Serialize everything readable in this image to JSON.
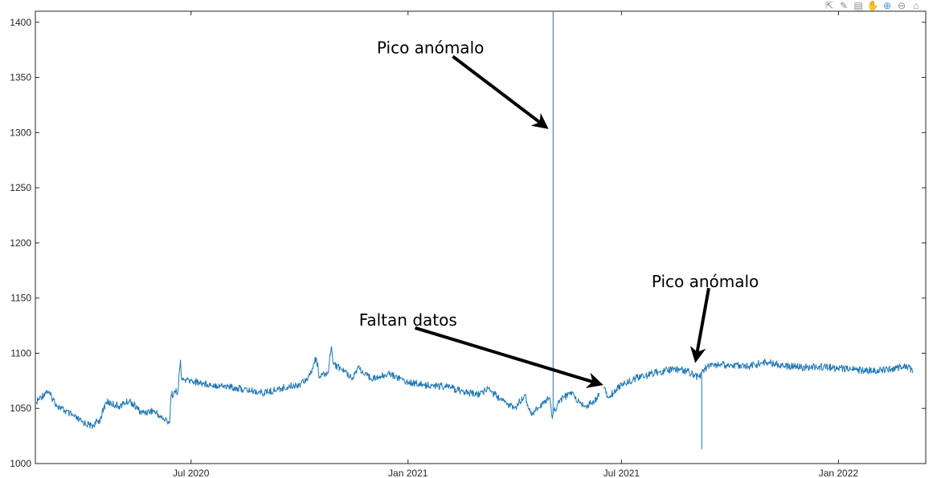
{
  "toolbar": {
    "icons": [
      "export-icon",
      "brush-icon",
      "datatip-icon",
      "pan-icon",
      "zoom-in-icon",
      "zoom-out-icon",
      "home-icon"
    ]
  },
  "chart_data": {
    "type": "line",
    "title": "",
    "xlabel": "",
    "ylabel": "",
    "xlim": [
      "2020-02-20",
      "2022-03-16"
    ],
    "ylim": [
      1000,
      1410
    ],
    "grid": false,
    "line_color": "#1f77b4",
    "yticks": [
      1000,
      1050,
      1100,
      1150,
      1200,
      1250,
      1300,
      1350,
      1400
    ],
    "xticks": [
      {
        "date": "2020-07-01",
        "label": "Jul 2020"
      },
      {
        "date": "2021-01-01",
        "label": "Jan 2021"
      },
      {
        "date": "2021-07-01",
        "label": "Jul 2021"
      },
      {
        "date": "2022-01-01",
        "label": "Jan 2022"
      }
    ],
    "series": [
      {
        "points": [
          [
            "2020-02-21",
            1056
          ],
          [
            "2020-03-01",
            1066
          ],
          [
            "2020-03-10",
            1052
          ],
          [
            "2020-03-20",
            1045
          ],
          [
            "2020-03-30",
            1038
          ],
          [
            "2020-04-08",
            1034
          ],
          [
            "2020-04-15",
            1040
          ],
          [
            "2020-04-20",
            1056
          ],
          [
            "2020-05-01",
            1052
          ],
          [
            "2020-05-10",
            1057
          ],
          [
            "2020-05-20",
            1046
          ],
          [
            "2020-05-30",
            1048
          ],
          [
            "2020-06-08",
            1040
          ],
          [
            "2020-06-13",
            1038
          ],
          [
            "2020-06-14",
            1062
          ],
          [
            "2020-06-20",
            1066
          ],
          [
            "2020-06-22",
            1094
          ],
          [
            "2020-06-23",
            1076
          ],
          [
            "2020-07-01",
            1075
          ],
          [
            "2020-07-15",
            1072
          ],
          [
            "2020-08-01",
            1070
          ],
          [
            "2020-08-15",
            1067
          ],
          [
            "2020-09-01",
            1064
          ],
          [
            "2020-09-15",
            1068
          ],
          [
            "2020-10-01",
            1072
          ],
          [
            "2020-10-10",
            1080
          ],
          [
            "2020-10-15",
            1096
          ],
          [
            "2020-10-18",
            1078
          ],
          [
            "2020-10-25",
            1082
          ],
          [
            "2020-10-28",
            1106
          ],
          [
            "2020-10-30",
            1090
          ],
          [
            "2020-11-05",
            1086
          ],
          [
            "2020-11-15",
            1078
          ],
          [
            "2020-11-20",
            1088
          ],
          [
            "2020-11-25",
            1080
          ],
          [
            "2020-12-05",
            1077
          ],
          [
            "2020-12-15",
            1082
          ],
          [
            "2021-01-01",
            1074
          ],
          [
            "2021-01-15",
            1071
          ],
          [
            "2021-02-01",
            1070
          ],
          [
            "2021-02-15",
            1066
          ],
          [
            "2021-03-01",
            1062
          ],
          [
            "2021-03-10",
            1068
          ],
          [
            "2021-03-20",
            1058
          ],
          [
            "2021-04-01",
            1050
          ],
          [
            "2021-04-10",
            1062
          ],
          [
            "2021-04-15",
            1045
          ],
          [
            "2021-04-25",
            1054
          ],
          [
            "2021-05-01",
            1060
          ],
          [
            "2021-05-03",
            1043
          ],
          [
            "2021-05-10",
            1058
          ],
          [
            "2021-05-20",
            1064
          ],
          [
            "2021-05-25",
            1056
          ],
          [
            "2021-06-01",
            1052
          ],
          [
            "2021-06-08",
            1056
          ],
          [
            "2021-06-12",
            1064
          ],
          null,
          [
            "2021-06-16",
            1068
          ],
          [
            "2021-06-20",
            1060
          ],
          [
            "2021-07-01",
            1072
          ],
          [
            "2021-07-15",
            1078
          ],
          [
            "2021-08-01",
            1083
          ],
          [
            "2021-08-15",
            1086
          ],
          [
            "2021-08-25",
            1084
          ],
          [
            "2021-09-01",
            1080
          ],
          [
            "2021-09-05",
            1078
          ],
          [
            "2021-09-08",
            1084
          ],
          [
            "2021-09-12",
            1088
          ],
          [
            "2021-09-20",
            1090
          ],
          [
            "2021-10-01",
            1089
          ],
          [
            "2021-10-15",
            1088
          ],
          [
            "2021-11-01",
            1092
          ],
          [
            "2021-11-15",
            1089
          ],
          [
            "2021-12-01",
            1087
          ],
          [
            "2021-12-15",
            1088
          ],
          [
            "2022-01-01",
            1086
          ],
          [
            "2022-01-15",
            1085
          ],
          [
            "2022-02-01",
            1084
          ],
          [
            "2022-02-15",
            1086
          ],
          [
            "2022-03-01",
            1088
          ],
          [
            "2022-03-05",
            1082
          ]
        ]
      }
    ],
    "spikes": [
      {
        "date": "2021-05-04",
        "from": 1045,
        "to": 1410
      },
      {
        "date": "2021-09-07",
        "from": 1080,
        "to": 1013
      }
    ],
    "annotations": [
      {
        "text": "Pico anómalo",
        "text_at": [
          "2021-01-20",
          1372
        ],
        "arrow_from": [
          "2021-02-08",
          1369
        ],
        "arrow_to": [
          "2021-04-28",
          1305
        ]
      },
      {
        "text": "Faltan datos",
        "text_at": [
          "2021-01-01",
          1125
        ],
        "arrow_from": [
          "2021-01-07",
          1123
        ],
        "arrow_to": [
          "2021-06-13",
          1072
        ]
      },
      {
        "text": "Pico anómalo",
        "text_at": [
          "2021-09-10",
          1160
        ],
        "arrow_from": [
          "2021-09-13",
          1159
        ],
        "arrow_to": [
          "2021-09-02",
          1094
        ]
      }
    ]
  }
}
